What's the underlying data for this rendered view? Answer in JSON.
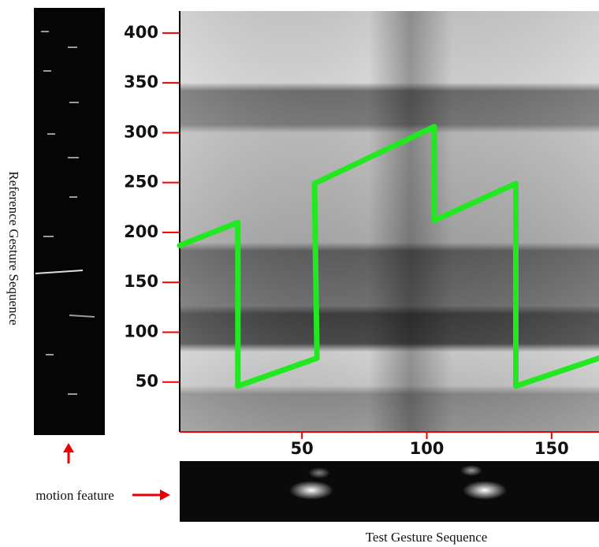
{
  "chart_data": {
    "type": "line",
    "xlabel": "Test Gesture Sequence",
    "ylabel": "Reference Gesture Sequence",
    "annotation": "motion feature",
    "x": [
      1,
      24.3,
      24.3,
      56,
      55,
      103,
      103,
      135.7,
      135.7,
      169
    ],
    "values": [
      187,
      210,
      46,
      74,
      249,
      306,
      212,
      249,
      46,
      74
    ],
    "color": "#22e822",
    "xlim": [
      1,
      169
    ],
    "ylim": [
      0,
      422
    ],
    "xticks": [
      50,
      100,
      150
    ],
    "yticks": [
      50,
      100,
      150,
      200,
      250,
      300,
      350,
      400
    ]
  }
}
